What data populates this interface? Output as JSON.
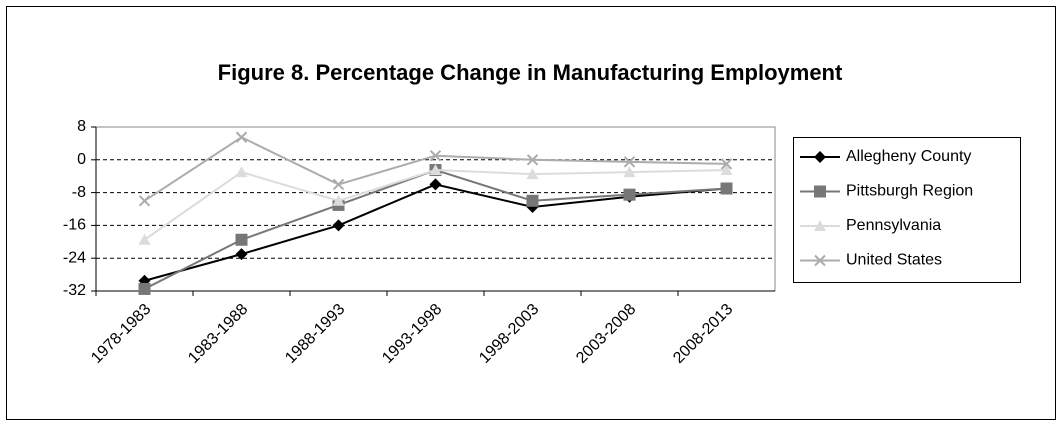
{
  "chart_data": {
    "type": "line",
    "title": "Figure 8. Percentage Change in Manufacturing Employment",
    "categories": [
      "1978-1983",
      "1983-1988",
      "1988-1993",
      "1993-1998",
      "1998-2003",
      "2003-2008",
      "2008-2013"
    ],
    "series": [
      {
        "name": "Allegheny County",
        "color": "#000000",
        "marker": "diamond",
        "values": [
          -29.5,
          -23,
          -16,
          -6,
          -11.5,
          -9,
          -7
        ]
      },
      {
        "name": "Pittsburgh Region",
        "color": "#777777",
        "marker": "square",
        "values": [
          -31.5,
          -19.5,
          -11,
          -2.5,
          -10,
          -8.5,
          -7
        ]
      },
      {
        "name": "Pennsylvania",
        "color": "#dcdcdc",
        "marker": "triangle",
        "values": [
          -19.5,
          -3,
          -10,
          -2.5,
          -3.5,
          -3,
          -2.5
        ]
      },
      {
        "name": "United States",
        "color": "#acacac",
        "marker": "x",
        "values": [
          -10,
          5.5,
          -6,
          1,
          0,
          -0.5,
          -1
        ]
      }
    ],
    "ylim": [
      -32,
      8
    ],
    "yticks": [
      -32,
      -24,
      -16,
      -8,
      0,
      8
    ],
    "grid": true,
    "legend": "right"
  }
}
